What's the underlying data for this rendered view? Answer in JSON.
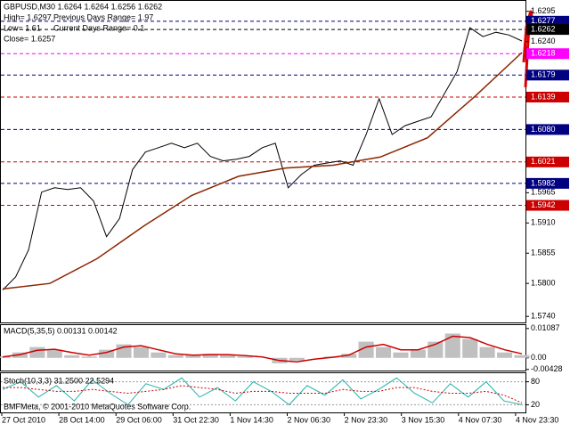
{
  "chart_data": [
    {
      "type": "line",
      "header": [
        "GBPUSD,M30  1.6264 1.6264 1.6256 1.6262",
        "High= 1.6297",
        "Previous Days Range= 1.97",
        "Low= 1.61",
        "Current Days Range= 0.1",
        "Close= 1.6257"
      ],
      "xlabels": [
        "27 Oct 2010",
        "28 Oct 14:00",
        "29 Oct 06:00",
        "31 Oct 22:30",
        "1 Nov 14:30",
        "2 Nov 06:30",
        "2 Nov 23:30",
        "3 Nov 15:30",
        "4 Nov 07:30",
        "4 Nov 23:30"
      ],
      "ylim": [
        1.5729,
        1.6314
      ],
      "yticks": [
        1.6295,
        {
          "value": 1.624,
          "label": "1.6240"
        },
        1.5965,
        {
          "value": 1.591,
          "label": "1.5910"
        },
        1.5855,
        {
          "value": 1.58,
          "label": "1.5800"
        },
        {
          "value": 1.574,
          "label": "1.5740"
        }
      ],
      "levels": [
        {
          "value": 1.6277,
          "label": "1.6277",
          "color": "#000080"
        },
        {
          "value": 1.6262,
          "label": "1.6262",
          "color": "#000000"
        },
        {
          "value": 1.6218,
          "label": "1.6218",
          "color": "#ff00ff"
        },
        {
          "value": 1.6179,
          "label": "1.6179",
          "color": "#000080"
        },
        {
          "value": 1.6139,
          "label": "1.6139",
          "color": "#cc0000"
        },
        {
          "value": 1.608,
          "label": "1.6080",
          "color": "#000080"
        },
        {
          "value": 1.6021,
          "label": "1.6021",
          "color": "#cc0000"
        },
        {
          "value": 1.5982,
          "label": "1.5982",
          "color": "#000080"
        },
        {
          "value": 1.5942,
          "label": "1.5942",
          "color": "#cc0000"
        }
      ],
      "series": [
        {
          "color": "#000000",
          "values": [
            1.5788,
            1.5812,
            1.5861,
            1.5966,
            1.5974,
            1.5971,
            1.5974,
            1.595,
            1.5885,
            1.5918,
            1.6007,
            1.6039,
            1.6047,
            1.6055,
            1.6047,
            1.6055,
            1.6031,
            1.6023,
            1.6026,
            1.6031,
            1.6047,
            1.6055,
            1.5974,
            1.5998,
            1.6015,
            1.6019,
            1.6023,
            1.6015,
            1.6071,
            1.6136,
            1.6071,
            1.6087,
            1.6095,
            1.6103,
            1.6144,
            1.6185,
            1.6265,
            1.6249,
            1.6257,
            1.6252,
            1.6241
          ]
        },
        {
          "color": "#8b2500",
          "values": [
            1.579,
            1.58,
            1.5845,
            1.5905,
            1.596,
            1.5995,
            1.601,
            1.6015,
            1.603,
            1.6065,
            1.614,
            1.622
          ]
        }
      ]
    },
    {
      "type": "macd",
      "title": "MACD(5,35,5) 0.00131 0.00142",
      "ylim": [
        -0.0047,
        0.0118
      ],
      "yticks": [
        0.01087,
        {
          "value": 0,
          "label": "0.00"
        },
        -0.00428
      ],
      "series": [
        {
          "color": "#c0c0c0",
          "values": [
            0.0005,
            0.002,
            0.004,
            0.003,
            0.001,
            0.0005,
            0.003,
            0.005,
            0.004,
            0.002,
            0.001,
            0.001,
            0.0015,
            0.001,
            0.0005,
            0.0,
            -0.002,
            -0.001,
            0.0,
            0.0005,
            0.0015,
            0.006,
            0.004,
            0.002,
            0.003,
            0.006,
            0.009,
            0.007,
            0.004,
            0.002,
            0.001
          ]
        },
        {
          "color": "#cc0000",
          "values": [
            0.0003,
            0.0012,
            0.0028,
            0.0032,
            0.002,
            0.001,
            0.002,
            0.004,
            0.0045,
            0.003,
            0.0015,
            0.001,
            0.0012,
            0.0012,
            0.0008,
            0.0003,
            -0.001,
            -0.0015,
            -0.0005,
            0.0002,
            0.001,
            0.004,
            0.005,
            0.003,
            0.003,
            0.005,
            0.008,
            0.0075,
            0.005,
            0.003,
            0.0015
          ]
        }
      ]
    },
    {
      "type": "stoch",
      "title": "Stoch(10,3,3) 31.2500 22.5294",
      "footer": "BMFMeta, © 2001-2010 MetaQuotes Software Corp.",
      "ylim": [
        0,
        100
      ],
      "yticks": [
        80,
        20
      ],
      "series": [
        {
          "color": "#20b2aa",
          "values": [
            60,
            80,
            40,
            70,
            30,
            85,
            50,
            20,
            75,
            60,
            90,
            40,
            65,
            30,
            80,
            55,
            20,
            70,
            45,
            85,
            35,
            60,
            90,
            50,
            25,
            75,
            40,
            80,
            30,
            20
          ]
        },
        {
          "color": "#cc0000",
          "values": [
            65,
            65,
            60,
            55,
            55,
            60,
            55,
            50,
            55,
            60,
            70,
            65,
            60,
            50,
            55,
            55,
            50,
            50,
            50,
            60,
            55,
            55,
            65,
            65,
            55,
            50,
            50,
            55,
            45,
            25
          ]
        }
      ]
    }
  ]
}
